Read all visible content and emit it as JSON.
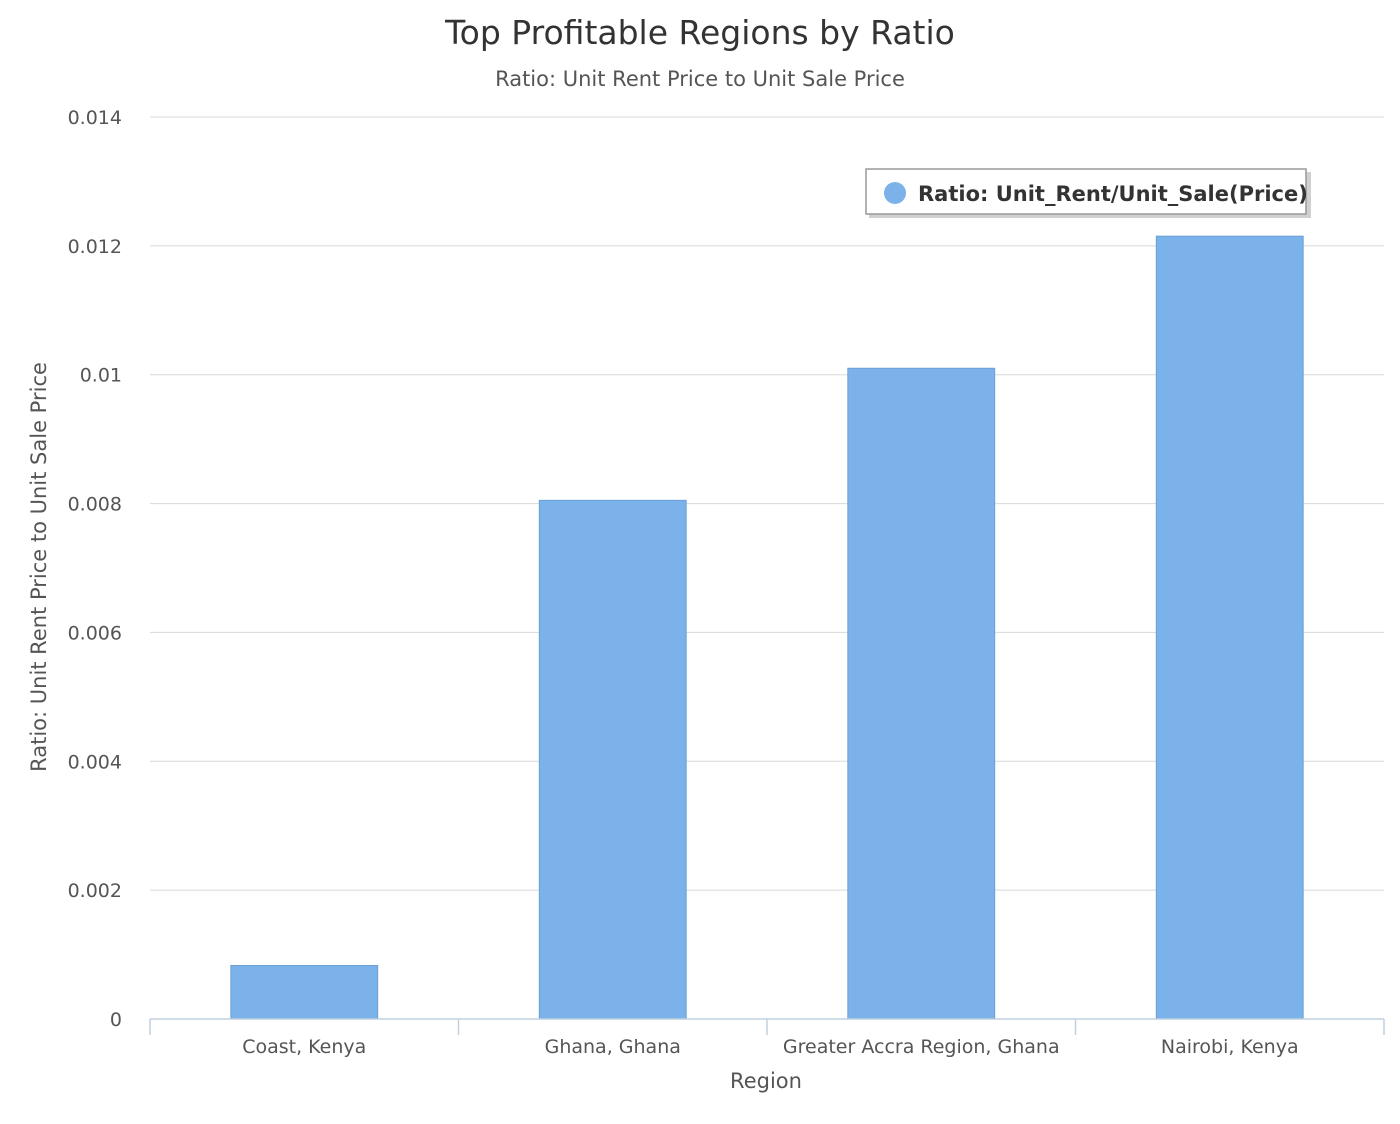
{
  "chart_data": {
    "type": "bar",
    "title": "Top Profitable Regions by Ratio",
    "subtitle": "Ratio: Unit Rent Price to Unit Sale Price",
    "xlabel": "Region",
    "ylabel": "Ratio: Unit Rent Price to Unit Sale Price",
    "categories": [
      "Coast, Kenya",
      "Ghana, Ghana",
      "Greater Accra Region, Ghana",
      "Nairobi, Kenya"
    ],
    "series": [
      {
        "name": "Ratio: Unit_Rent/Unit_Sale(Price)",
        "values": [
          0.00083,
          0.00805,
          0.0101,
          0.01215
        ],
        "color": "#7cb2ea"
      }
    ],
    "ylim": [
      0,
      0.014
    ],
    "yticks": [
      0,
      0.002,
      0.004,
      0.006,
      0.008,
      0.01,
      0.012,
      0.014
    ],
    "ytick_labels": [
      "0",
      "0.002",
      "0.004",
      "0.006",
      "0.008",
      "0.01",
      "0.012",
      "0.014"
    ],
    "grid": true,
    "legend": {
      "position": "top-right",
      "marker": "circle"
    }
  },
  "colors": {
    "bar": "#7cb2ea",
    "grid": "#d8d8d8",
    "axis": "#c0d0e0"
  }
}
